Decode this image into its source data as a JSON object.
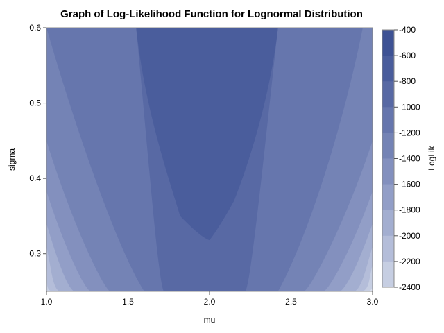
{
  "chart_data": {
    "type": "heatmap",
    "subtype": "filled-contour",
    "title": "Graph of Log-Likelihood Function for Lognormal Distribution",
    "xlabel": "mu",
    "ylabel": "sigma",
    "xlim": [
      1.0,
      3.0
    ],
    "ylim": [
      0.25,
      0.6
    ],
    "x_ticks": [
      "1.0",
      "1.5",
      "2.0",
      "2.5",
      "3.0"
    ],
    "y_ticks": [
      "0.3",
      "0.4",
      "0.5",
      "0.6"
    ],
    "x_tick_values": [
      1.0,
      1.5,
      2.0,
      2.5,
      3.0
    ],
    "y_tick_values": [
      0.3,
      0.4,
      0.5,
      0.6
    ],
    "legend": {
      "title": "LogLik",
      "placement": "right",
      "labels": [
        "-400",
        "-600",
        "-800",
        "-1000",
        "-1200",
        "-1400",
        "-1600",
        "-1800",
        "-2000",
        "-2200",
        "-2400"
      ],
      "levels": [
        -400,
        -600,
        -800,
        -1000,
        -1200,
        -1400,
        -1600,
        -1800,
        -2000,
        -2200,
        -2400
      ],
      "colors": [
        "#3e5294",
        "#4a5d9c",
        "#5869a4",
        "#6676ad",
        "#7483b5",
        "#8390be",
        "#929ec7",
        "#a3aed0",
        "#b4bdd9",
        "#c6cee2",
        "#d9deec"
      ]
    },
    "contours": [
      {
        "level": -600,
        "points": [
          [
            1.82,
            0.35
          ],
          [
            1.95,
            0.321
          ],
          [
            2.0,
            0.318
          ],
          [
            2.06,
            0.335
          ],
          [
            2.15,
            0.37
          ]
        ]
      },
      {
        "level": -800,
        "points": [
          [
            1.72,
            0.25
          ],
          [
            2.22,
            0.25
          ]
        ]
      },
      {
        "level": -1000,
        "points": [
          [
            1.0,
            0.6
          ],
          [
            2.42,
            0.25
          ]
        ]
      },
      {
        "level": -1200,
        "points": [
          [
            1.0,
            0.45
          ],
          [
            2.58,
            0.25
          ]
        ]
      },
      {
        "level": -1400,
        "points": [
          [
            1.0,
            0.383
          ],
          [
            2.7,
            0.25
          ]
        ]
      },
      {
        "level": -1600,
        "points": [
          [
            1.0,
            0.34
          ],
          [
            2.8,
            0.25
          ]
        ]
      },
      {
        "level": -1800,
        "points": [
          [
            1.0,
            0.31
          ],
          [
            2.89,
            0.25
          ]
        ]
      },
      {
        "level": -2000,
        "points": [
          [
            1.0,
            0.285
          ],
          [
            2.94,
            0.25
          ]
        ]
      },
      {
        "level": -2200,
        "points": [
          [
            1.0,
            0.266
          ],
          [
            2.975,
            0.25
          ]
        ]
      }
    ]
  }
}
